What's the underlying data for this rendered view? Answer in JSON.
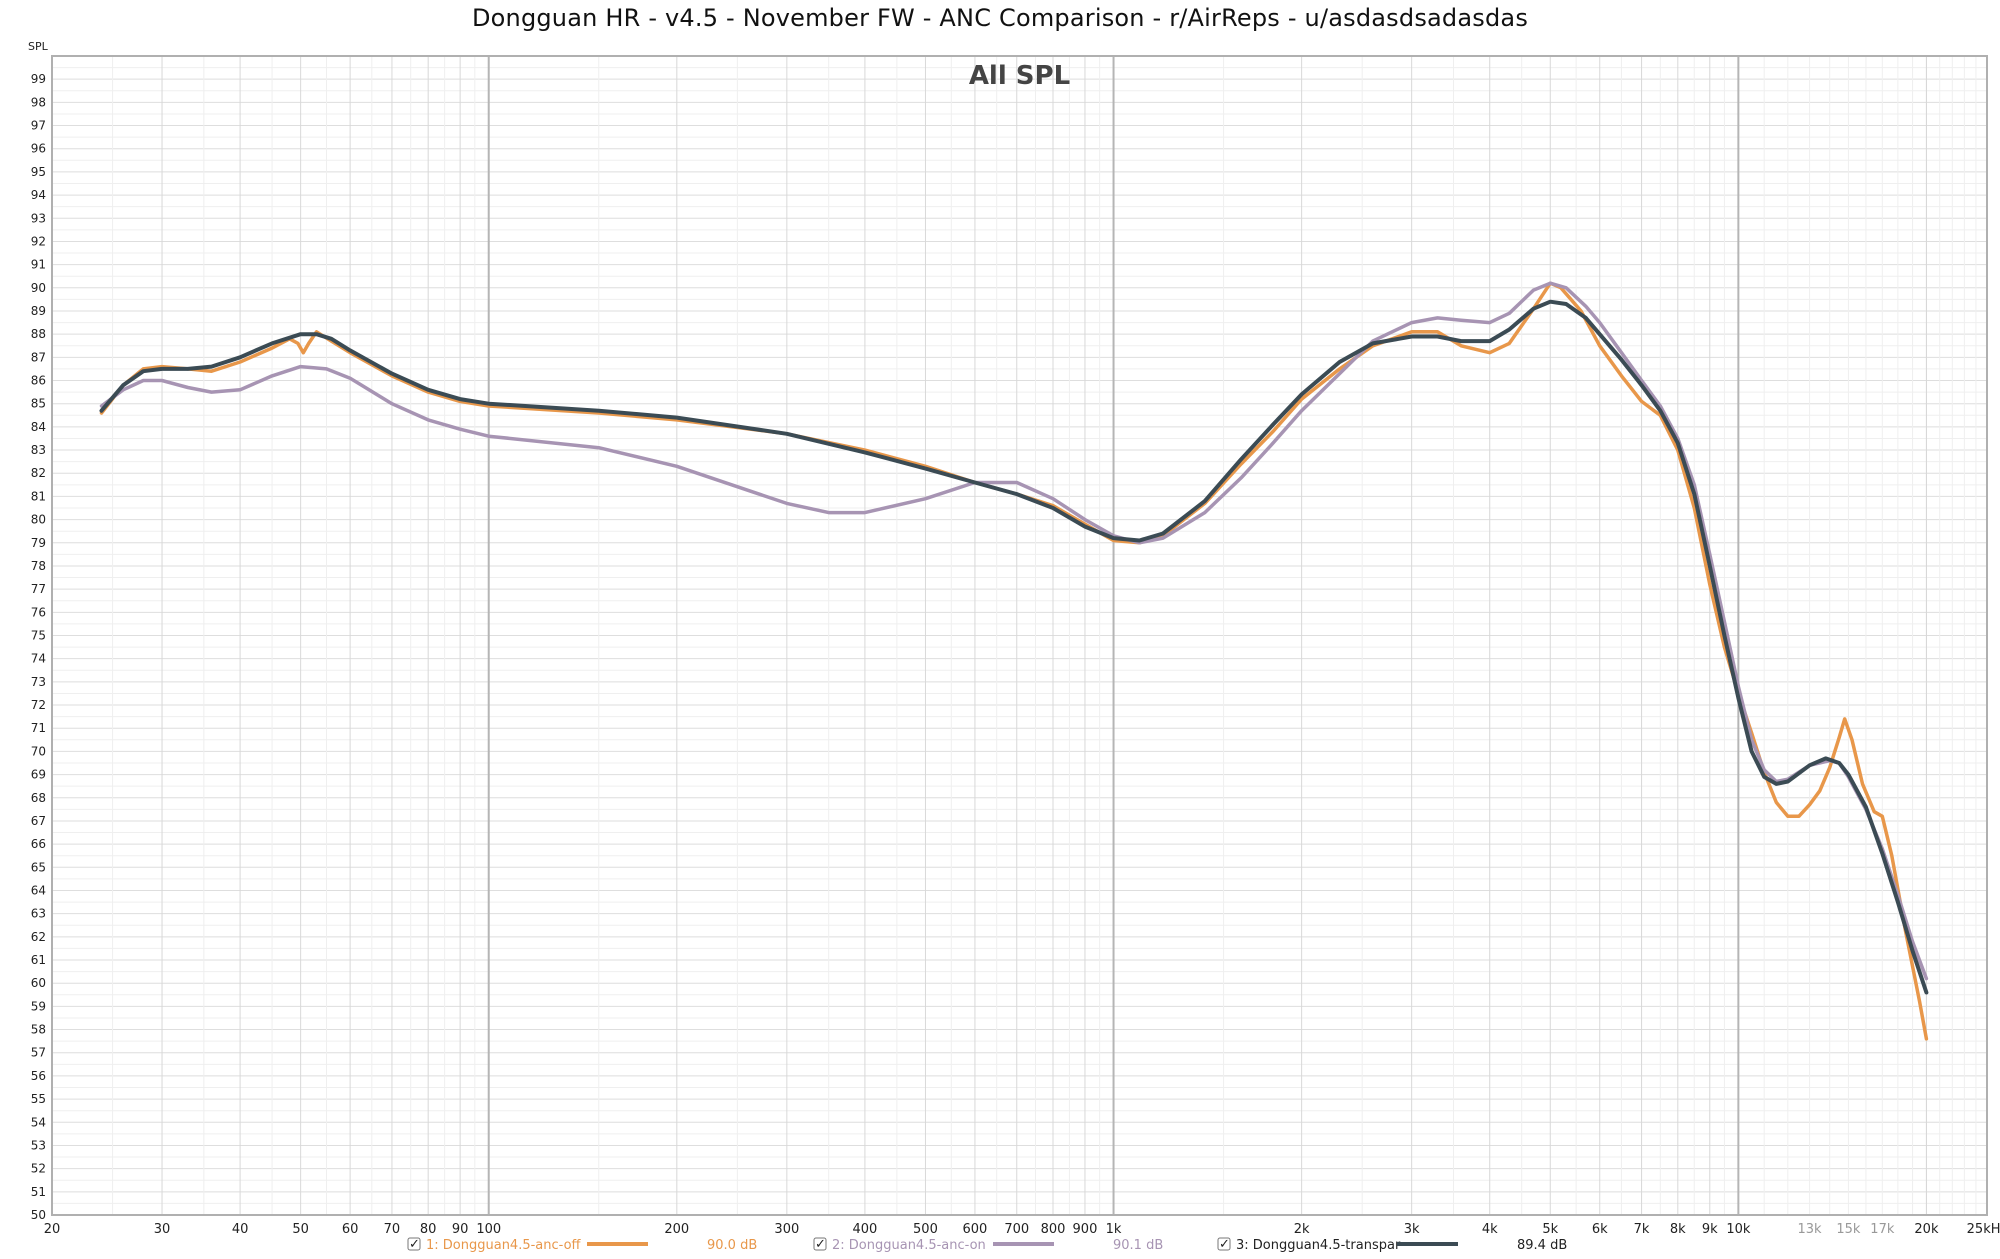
{
  "window": {
    "title": "Dongguan HR - v4.5 - November FW - ANC Comparison - r/AirReps - u/asdasdsadasdas"
  },
  "colors": {
    "orange": "#E8974A",
    "purple": "#A794B3",
    "dark": "#3B4B54",
    "grid": "#e3e3e3",
    "grid_major": "#b5b5b5",
    "frame": "#b0b0b0"
  },
  "chart_data": {
    "type": "line",
    "title": "All SPL",
    "ylabel": "SPL",
    "xlim": [
      20,
      25000
    ],
    "ylim": [
      50,
      100
    ],
    "x_scale": "log",
    "grid": true,
    "legend_placement": "bottom",
    "y_ticks": [
      50,
      51,
      52,
      53,
      54,
      55,
      56,
      57,
      58,
      59,
      60,
      61,
      62,
      63,
      64,
      65,
      66,
      67,
      68,
      69,
      70,
      71,
      72,
      73,
      74,
      75,
      76,
      77,
      78,
      79,
      80,
      81,
      82,
      83,
      84,
      85,
      86,
      87,
      88,
      89,
      90,
      91,
      92,
      93,
      94,
      95,
      96,
      97,
      98,
      99
    ],
    "x_ticks": [
      {
        "value": 20,
        "label": "20"
      },
      {
        "value": 30,
        "label": "30"
      },
      {
        "value": 40,
        "label": "40"
      },
      {
        "value": 50,
        "label": "50"
      },
      {
        "value": 60,
        "label": "60"
      },
      {
        "value": 70,
        "label": "70"
      },
      {
        "value": 80,
        "label": "80"
      },
      {
        "value": 90,
        "label": "90"
      },
      {
        "value": 100,
        "label": "100"
      },
      {
        "value": 200,
        "label": "200"
      },
      {
        "value": 300,
        "label": "300"
      },
      {
        "value": 400,
        "label": "400"
      },
      {
        "value": 500,
        "label": "500"
      },
      {
        "value": 600,
        "label": "600"
      },
      {
        "value": 700,
        "label": "700"
      },
      {
        "value": 800,
        "label": "800"
      },
      {
        "value": 900,
        "label": "900"
      },
      {
        "value": 1000,
        "label": "1k"
      },
      {
        "value": 2000,
        "label": "2k"
      },
      {
        "value": 3000,
        "label": "3k"
      },
      {
        "value": 4000,
        "label": "4k"
      },
      {
        "value": 5000,
        "label": "5k"
      },
      {
        "value": 6000,
        "label": "6k"
      },
      {
        "value": 7000,
        "label": "7k"
      },
      {
        "value": 8000,
        "label": "8k"
      },
      {
        "value": 9000,
        "label": "9k"
      },
      {
        "value": 10000,
        "label": "10k"
      },
      {
        "value": 13000,
        "label": "13k",
        "minor": true
      },
      {
        "value": 15000,
        "label": "15k",
        "minor": true
      },
      {
        "value": 17000,
        "label": "17k",
        "minor": true
      },
      {
        "value": 20000,
        "label": "20k"
      },
      {
        "value": 25000,
        "label": "25kHz"
      }
    ],
    "series": [
      {
        "name": "1: Dongguan4.5-anc-off",
        "level": "90.0 dB",
        "color": "#E8974A",
        "points": [
          [
            24,
            84.6
          ],
          [
            26,
            85.8
          ],
          [
            28,
            86.5
          ],
          [
            30,
            86.6
          ],
          [
            33,
            86.5
          ],
          [
            36,
            86.4
          ],
          [
            40,
            86.8
          ],
          [
            45,
            87.4
          ],
          [
            48,
            87.8
          ],
          [
            49.5,
            87.6
          ],
          [
            50.5,
            87.2
          ],
          [
            51.5,
            87.6
          ],
          [
            53,
            88.1
          ],
          [
            56,
            87.7
          ],
          [
            60,
            87.2
          ],
          [
            70,
            86.2
          ],
          [
            80,
            85.5
          ],
          [
            90,
            85.1
          ],
          [
            100,
            84.9
          ],
          [
            150,
            84.6
          ],
          [
            200,
            84.3
          ],
          [
            300,
            83.7
          ],
          [
            400,
            83.0
          ],
          [
            500,
            82.3
          ],
          [
            600,
            81.6
          ],
          [
            700,
            81.1
          ],
          [
            800,
            80.6
          ],
          [
            900,
            79.8
          ],
          [
            1000,
            79.1
          ],
          [
            1100,
            79.0
          ],
          [
            1200,
            79.3
          ],
          [
            1400,
            80.7
          ],
          [
            1600,
            82.4
          ],
          [
            1800,
            83.8
          ],
          [
            2000,
            85.2
          ],
          [
            2300,
            86.5
          ],
          [
            2600,
            87.5
          ],
          [
            3000,
            88.1
          ],
          [
            3300,
            88.1
          ],
          [
            3600,
            87.5
          ],
          [
            4000,
            87.2
          ],
          [
            4300,
            87.6
          ],
          [
            4700,
            89.1
          ],
          [
            5000,
            90.2
          ],
          [
            5200,
            90.0
          ],
          [
            5600,
            89.0
          ],
          [
            6000,
            87.5
          ],
          [
            6500,
            86.2
          ],
          [
            7000,
            85.1
          ],
          [
            7500,
            84.5
          ],
          [
            8000,
            83.0
          ],
          [
            8500,
            80.5
          ],
          [
            9000,
            77.2
          ],
          [
            9500,
            74.5
          ],
          [
            10000,
            72.5
          ],
          [
            10500,
            70.8
          ],
          [
            11000,
            69.1
          ],
          [
            11500,
            67.8
          ],
          [
            12000,
            67.2
          ],
          [
            12500,
            67.2
          ],
          [
            13000,
            67.7
          ],
          [
            13500,
            68.3
          ],
          [
            14000,
            69.3
          ],
          [
            14500,
            70.6
          ],
          [
            14800,
            71.4
          ],
          [
            15200,
            70.5
          ],
          [
            15800,
            68.6
          ],
          [
            16500,
            67.4
          ],
          [
            17000,
            67.2
          ],
          [
            17600,
            65.5
          ],
          [
            18500,
            62.3
          ],
          [
            19500,
            59.2
          ],
          [
            20000,
            57.6
          ]
        ]
      },
      {
        "name": "2: Dongguan4.5-anc-on",
        "level": "90.1 dB",
        "color": "#A794B3",
        "points": [
          [
            24,
            84.9
          ],
          [
            26,
            85.6
          ],
          [
            28,
            86.0
          ],
          [
            30,
            86.0
          ],
          [
            33,
            85.7
          ],
          [
            36,
            85.5
          ],
          [
            40,
            85.6
          ],
          [
            45,
            86.2
          ],
          [
            50,
            86.6
          ],
          [
            55,
            86.5
          ],
          [
            60,
            86.1
          ],
          [
            70,
            85.0
          ],
          [
            80,
            84.3
          ],
          [
            90,
            83.9
          ],
          [
            100,
            83.6
          ],
          [
            150,
            83.1
          ],
          [
            200,
            82.3
          ],
          [
            300,
            80.7
          ],
          [
            350,
            80.3
          ],
          [
            400,
            80.3
          ],
          [
            500,
            80.9
          ],
          [
            600,
            81.6
          ],
          [
            700,
            81.6
          ],
          [
            800,
            80.9
          ],
          [
            900,
            80.0
          ],
          [
            1000,
            79.3
          ],
          [
            1100,
            79.0
          ],
          [
            1200,
            79.2
          ],
          [
            1400,
            80.3
          ],
          [
            1600,
            81.8
          ],
          [
            1800,
            83.3
          ],
          [
            2000,
            84.7
          ],
          [
            2300,
            86.3
          ],
          [
            2600,
            87.7
          ],
          [
            3000,
            88.5
          ],
          [
            3300,
            88.7
          ],
          [
            3600,
            88.6
          ],
          [
            4000,
            88.5
          ],
          [
            4300,
            88.9
          ],
          [
            4700,
            89.9
          ],
          [
            5000,
            90.2
          ],
          [
            5300,
            90.0
          ],
          [
            5700,
            89.2
          ],
          [
            6000,
            88.5
          ],
          [
            6500,
            87.2
          ],
          [
            7000,
            86.0
          ],
          [
            7500,
            84.9
          ],
          [
            8000,
            83.5
          ],
          [
            8500,
            81.5
          ],
          [
            9000,
            78.5
          ],
          [
            9500,
            75.6
          ],
          [
            10000,
            72.8
          ],
          [
            10500,
            70.5
          ],
          [
            11000,
            69.2
          ],
          [
            11500,
            68.7
          ],
          [
            12000,
            68.8
          ],
          [
            13000,
            69.4
          ],
          [
            14000,
            69.6
          ],
          [
            14500,
            69.5
          ],
          [
            15000,
            68.9
          ],
          [
            16000,
            67.5
          ],
          [
            17000,
            65.8
          ],
          [
            18000,
            63.8
          ],
          [
            19000,
            61.8
          ],
          [
            20000,
            60.2
          ]
        ]
      },
      {
        "name": "3: Dongguan4.5-transpar",
        "level": "89.4 dB",
        "color": "#3B4B54",
        "points": [
          [
            24,
            84.7
          ],
          [
            26,
            85.8
          ],
          [
            28,
            86.4
          ],
          [
            30,
            86.5
          ],
          [
            33,
            86.5
          ],
          [
            36,
            86.6
          ],
          [
            40,
            87.0
          ],
          [
            45,
            87.6
          ],
          [
            50,
            88.0
          ],
          [
            53,
            88.0
          ],
          [
            56,
            87.8
          ],
          [
            60,
            87.3
          ],
          [
            70,
            86.3
          ],
          [
            80,
            85.6
          ],
          [
            90,
            85.2
          ],
          [
            100,
            85.0
          ],
          [
            150,
            84.7
          ],
          [
            200,
            84.4
          ],
          [
            300,
            83.7
          ],
          [
            400,
            82.9
          ],
          [
            500,
            82.2
          ],
          [
            600,
            81.6
          ],
          [
            700,
            81.1
          ],
          [
            800,
            80.5
          ],
          [
            900,
            79.7
          ],
          [
            1000,
            79.2
          ],
          [
            1100,
            79.1
          ],
          [
            1200,
            79.4
          ],
          [
            1400,
            80.8
          ],
          [
            1600,
            82.6
          ],
          [
            1800,
            84.1
          ],
          [
            2000,
            85.4
          ],
          [
            2300,
            86.8
          ],
          [
            2600,
            87.6
          ],
          [
            3000,
            87.9
          ],
          [
            3300,
            87.9
          ],
          [
            3600,
            87.7
          ],
          [
            4000,
            87.7
          ],
          [
            4300,
            88.2
          ],
          [
            4700,
            89.1
          ],
          [
            5000,
            89.4
          ],
          [
            5300,
            89.3
          ],
          [
            5700,
            88.7
          ],
          [
            6000,
            88.0
          ],
          [
            6500,
            86.9
          ],
          [
            7000,
            85.8
          ],
          [
            7500,
            84.7
          ],
          [
            8000,
            83.3
          ],
          [
            8500,
            81.1
          ],
          [
            9000,
            78.0
          ],
          [
            9500,
            75.0
          ],
          [
            10000,
            72.3
          ],
          [
            10500,
            70.0
          ],
          [
            11000,
            68.9
          ],
          [
            11500,
            68.6
          ],
          [
            12000,
            68.7
          ],
          [
            13000,
            69.4
          ],
          [
            13800,
            69.7
          ],
          [
            14500,
            69.5
          ],
          [
            15000,
            69.0
          ],
          [
            16000,
            67.6
          ],
          [
            17000,
            65.6
          ],
          [
            18000,
            63.5
          ],
          [
            19000,
            61.4
          ],
          [
            20000,
            59.6
          ]
        ]
      }
    ]
  }
}
